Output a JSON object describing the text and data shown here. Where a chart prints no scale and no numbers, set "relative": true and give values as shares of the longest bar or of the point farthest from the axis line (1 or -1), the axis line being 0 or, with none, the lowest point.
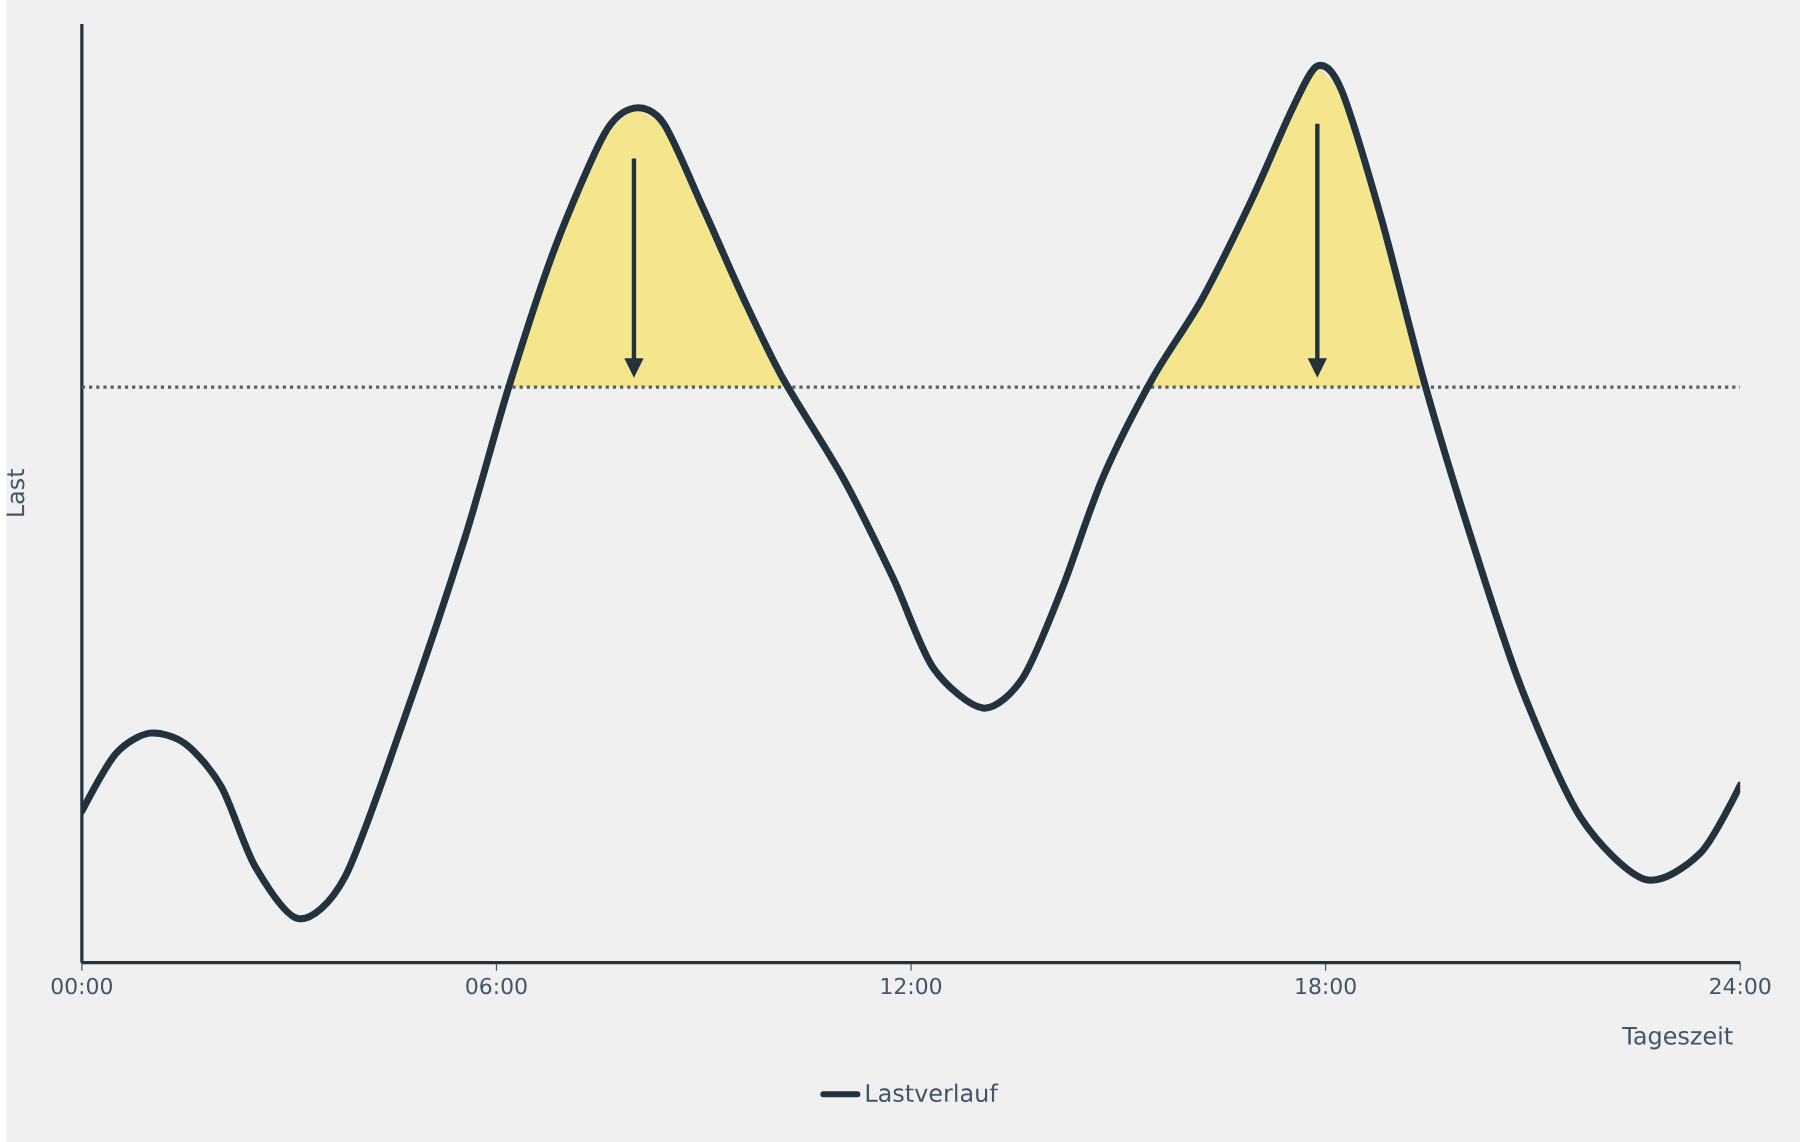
{
  "chart_data": {
    "type": "line",
    "relative": true,
    "xlabel": "Tageszeit",
    "ylabel": "Last",
    "xlim": [
      0,
      24
    ],
    "xticks": [
      {
        "value": 0,
        "label": "00:00"
      },
      {
        "value": 6,
        "label": "06:00"
      },
      {
        "value": 12,
        "label": "12:00"
      },
      {
        "value": 18,
        "label": "18:00"
      },
      {
        "value": 24,
        "label": "24:00"
      }
    ],
    "tick_labels": "x",
    "legend": "bottom",
    "x": [
      0,
      0.49,
      0.98,
      1.5,
      2.02,
      2.51,
      3.14,
      3.81,
      4.67,
      5.54,
      6.17,
      6.84,
      7.56,
      7.99,
      8.42,
      9.0,
      9.58,
      10.15,
      11.02,
      11.74,
      12.32,
      13.04,
      13.62,
      14.19,
      14.77,
      15.49,
      16.21,
      16.93,
      17.51,
      17.88,
      18.23,
      18.81,
      19.44,
      20.11,
      20.83,
      21.69,
      22.62,
      23.42,
      24.0
    ],
    "series": [
      {
        "name": "Lastverlauf",
        "color": "#22333f",
        "values": [
          0.169,
          0.233,
          0.256,
          0.244,
          0.196,
          0.107,
          0.049,
          0.096,
          0.273,
          0.473,
          0.64,
          0.796,
          0.924,
          0.953,
          0.936,
          0.84,
          0.74,
          0.651,
          0.54,
          0.429,
          0.329,
          0.284,
          0.318,
          0.418,
          0.54,
          0.651,
          0.74,
          0.851,
          0.951,
          1.0,
          0.973,
          0.829,
          0.644,
          0.473,
          0.307,
          0.162,
          0.093,
          0.122,
          0.198
        ],
        "lower": [
          null,
          null,
          null,
          null,
          null,
          null,
          null,
          null,
          null,
          null,
          0.642,
          0.642,
          0.642,
          0.642,
          0.642,
          0.642,
          0.642,
          0.642,
          null,
          null,
          null,
          null,
          null,
          null,
          null,
          0.642,
          0.642,
          0.642,
          0.642,
          0.642,
          0.642,
          0.642,
          0.642,
          null,
          null,
          null,
          null,
          null,
          null
        ],
        "upper": [
          null,
          null,
          null,
          null,
          null,
          null,
          null,
          null,
          null,
          null,
          0.642,
          0.796,
          0.924,
          0.953,
          0.936,
          0.84,
          0.74,
          0.651,
          null,
          null,
          null,
          null,
          null,
          null,
          null,
          0.651,
          0.74,
          0.851,
          0.951,
          1.0,
          0.973,
          0.829,
          0.644,
          null,
          null,
          null,
          null,
          null,
          null
        ]
      }
    ],
    "ref_lines": [
      {
        "axis": "y",
        "value": 0.642,
        "color": "#555f66",
        "line_style": "dotted"
      }
    ]
  }
}
